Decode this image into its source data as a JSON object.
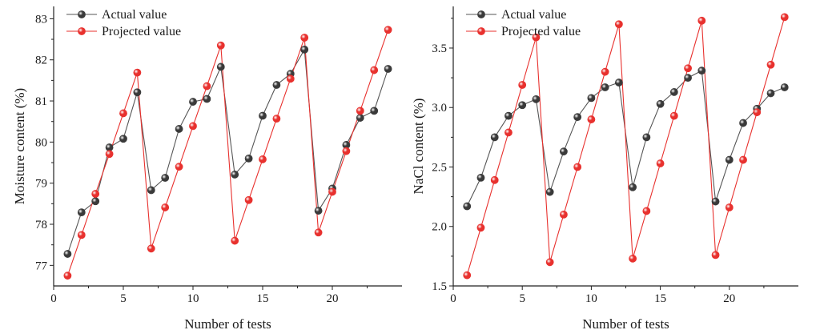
{
  "chart_data": [
    {
      "type": "line",
      "title": "",
      "xlabel": "Number of tests",
      "ylabel": "Moisture content (%)",
      "xlim": [
        0,
        25
      ],
      "ylim": [
        76.5,
        83.3
      ],
      "xticks": [
        "0",
        "5",
        "10",
        "15",
        "20"
      ],
      "xtick_values": [
        0,
        5,
        10,
        15,
        20
      ],
      "yticks": [
        "77",
        "78",
        "79",
        "80",
        "81",
        "82",
        "83"
      ],
      "ytick_values": [
        77,
        78,
        79,
        80,
        81,
        82,
        83
      ],
      "legend_position": "top-left",
      "grid": false,
      "x": [
        1,
        2,
        3,
        4,
        5,
        6,
        7,
        8,
        9,
        10,
        11,
        12,
        13,
        14,
        15,
        16,
        17,
        18,
        19,
        20,
        21,
        22,
        23,
        24
      ],
      "series": [
        {
          "name": "Actual value",
          "color": "#555555",
          "marker_color": "#3a3a3a",
          "values": [
            77.28,
            78.29,
            78.56,
            79.87,
            80.08,
            81.21,
            78.83,
            79.13,
            80.32,
            80.98,
            81.05,
            81.83,
            79.21,
            79.6,
            80.64,
            81.39,
            81.66,
            82.25,
            78.33,
            78.87,
            79.93,
            80.59,
            80.76,
            81.78
          ]
        },
        {
          "name": "Projected value",
          "color": "#e8312e",
          "marker_color": "#e8312e",
          "values": [
            76.75,
            77.74,
            78.74,
            79.71,
            80.7,
            81.69,
            77.41,
            78.41,
            79.4,
            80.39,
            81.36,
            82.35,
            77.6,
            78.59,
            79.58,
            80.57,
            81.54,
            82.54,
            77.8,
            78.79,
            79.78,
            80.76,
            81.75,
            82.73
          ]
        }
      ]
    },
    {
      "type": "line",
      "title": "",
      "xlabel": "Number of tests",
      "ylabel": "NaCl content (%)",
      "xlim": [
        0,
        25
      ],
      "ylim": [
        1.5,
        3.85
      ],
      "xticks": [
        "0",
        "5",
        "10",
        "15",
        "20"
      ],
      "xtick_values": [
        0,
        5,
        10,
        15,
        20
      ],
      "yticks": [
        "1.5",
        "2.0",
        "2.5",
        "3.0",
        "3.5"
      ],
      "ytick_values": [
        1.5,
        2.0,
        2.5,
        3.0,
        3.5
      ],
      "legend_position": "top-left",
      "grid": false,
      "x": [
        1,
        2,
        3,
        4,
        5,
        6,
        7,
        8,
        9,
        10,
        11,
        12,
        13,
        14,
        15,
        16,
        17,
        18,
        19,
        20,
        21,
        22,
        23,
        24
      ],
      "series": [
        {
          "name": "Actual value",
          "color": "#555555",
          "marker_color": "#3a3a3a",
          "values": [
            2.17,
            2.41,
            2.75,
            2.93,
            3.02,
            3.07,
            2.29,
            2.63,
            2.92,
            3.08,
            3.17,
            3.21,
            2.33,
            2.75,
            3.03,
            3.13,
            3.25,
            3.31,
            2.21,
            2.56,
            2.87,
            2.99,
            3.12,
            3.17
          ]
        },
        {
          "name": "Projected value",
          "color": "#e8312e",
          "marker_color": "#e8312e",
          "values": [
            1.59,
            1.99,
            2.39,
            2.79,
            3.19,
            3.59,
            1.7,
            2.1,
            2.5,
            2.9,
            3.3,
            3.7,
            1.73,
            2.13,
            2.53,
            2.93,
            3.33,
            3.73,
            1.76,
            2.16,
            2.56,
            2.96,
            3.36,
            3.76
          ]
        }
      ]
    }
  ]
}
